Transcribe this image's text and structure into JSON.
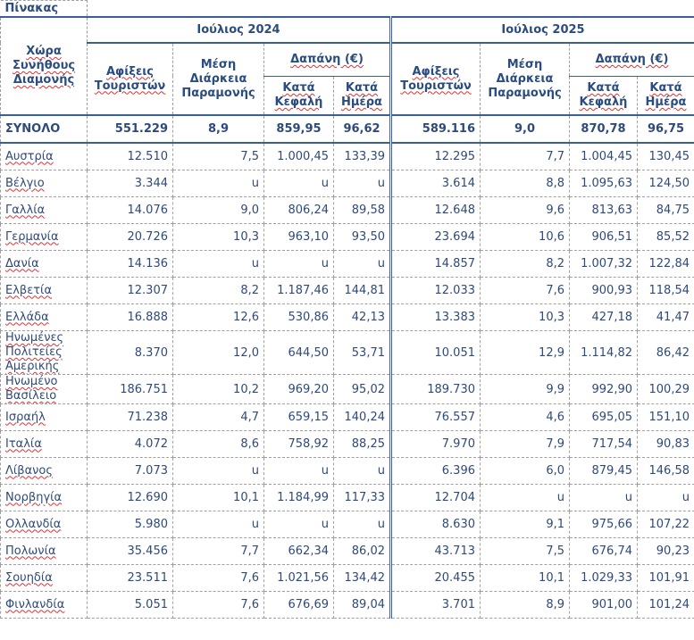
{
  "title": "Πίνακας",
  "header": {
    "country": "Χώρα Συνήθους Διαμονής",
    "period1": "Ιούλιος 2024",
    "period2": "Ιούλιος 2025",
    "arrivals": "Αφίξεις Τουριστών",
    "duration": "Μέση Διάρκεια Παραμονής",
    "spend": "Δαπάνη (€)",
    "per_head": "Κατά Κεφαλή",
    "per_day": "Κατά Ημέρα"
  },
  "total": {
    "name": "ΣΥΝΟΛΟ",
    "values": [
      "551.229",
      "8,9",
      "859,95",
      "96,62",
      "589.116",
      "9,0",
      "870,78",
      "96,75"
    ]
  },
  "rows": [
    {
      "name": "Αυστρία",
      "values": [
        "12.510",
        "7,5",
        "1.000,45",
        "133,39",
        "12.295",
        "7,7",
        "1.004,45",
        "130,45"
      ]
    },
    {
      "name": "Βέλγιο",
      "values": [
        "3.344",
        "u",
        "u",
        "u",
        "3.614",
        "8,8",
        "1.095,63",
        "124,50"
      ]
    },
    {
      "name": "Γαλλία",
      "values": [
        "14.076",
        "9,0",
        "806,24",
        "89,58",
        "12.648",
        "9,6",
        "813,63",
        "84,75"
      ]
    },
    {
      "name": "Γερμανία",
      "values": [
        "20.726",
        "10,3",
        "963,10",
        "93,50",
        "23.694",
        "10,6",
        "906,51",
        "85,52"
      ]
    },
    {
      "name": "Δανία",
      "values": [
        "14.136",
        "u",
        "u",
        "u",
        "14.857",
        "8,2",
        "1.007,32",
        "122,84"
      ]
    },
    {
      "name": "Ελβετία",
      "values": [
        "12.307",
        "8,2",
        "1.187,46",
        "144,81",
        "12.033",
        "7,6",
        "900,93",
        "118,54"
      ]
    },
    {
      "name": "Ελλάδα",
      "values": [
        "16.888",
        "12,6",
        "530,86",
        "42,13",
        "13.383",
        "10,3",
        "427,18",
        "41,47"
      ]
    },
    {
      "name": "Ηνωμένες Πολιτείες Αμερικής",
      "values": [
        "8.370",
        "12,0",
        "644,50",
        "53,71",
        "10.051",
        "12,9",
        "1.114,82",
        "86,42"
      ]
    },
    {
      "name": "Ηνωμένο Βασίλειο",
      "values": [
        "186.751",
        "10,2",
        "969,20",
        "95,02",
        "189.730",
        "9,9",
        "992,90",
        "100,29"
      ]
    },
    {
      "name": "Ισραήλ",
      "values": [
        "71.238",
        "4,7",
        "659,15",
        "140,24",
        "76.557",
        "4,6",
        "695,05",
        "151,10"
      ]
    },
    {
      "name": "Ιταλία",
      "values": [
        "4.072",
        "8,6",
        "758,92",
        "88,25",
        "7.970",
        "7,9",
        "717,54",
        "90,83"
      ]
    },
    {
      "name": "Λίβανος",
      "values": [
        "7.073",
        "u",
        "u",
        "u",
        "6.396",
        "6,0",
        "879,45",
        "146,58"
      ]
    },
    {
      "name": "Νορβηγία",
      "values": [
        "12.690",
        "10,1",
        "1.184,99",
        "117,33",
        "12.704",
        "u",
        "u",
        "u"
      ]
    },
    {
      "name": "Ολλανδία",
      "values": [
        "5.980",
        "u",
        "u",
        "u",
        "8.630",
        "9,1",
        "975,66",
        "107,22"
      ]
    },
    {
      "name": "Πολωνία",
      "values": [
        "35.456",
        "7,7",
        "662,34",
        "86,02",
        "43.713",
        "7,5",
        "676,74",
        "90,23"
      ]
    },
    {
      "name": "Σουηδία",
      "values": [
        "23.511",
        "7,6",
        "1.021,56",
        "134,42",
        "20.455",
        "10,1",
        "1.029,33",
        "101,91"
      ]
    },
    {
      "name": "Φινλανδία",
      "values": [
        "5.051",
        "7,6",
        "676,69",
        "89,04",
        "3.701",
        "8,9",
        "901,00",
        "101,24"
      ]
    }
  ]
}
